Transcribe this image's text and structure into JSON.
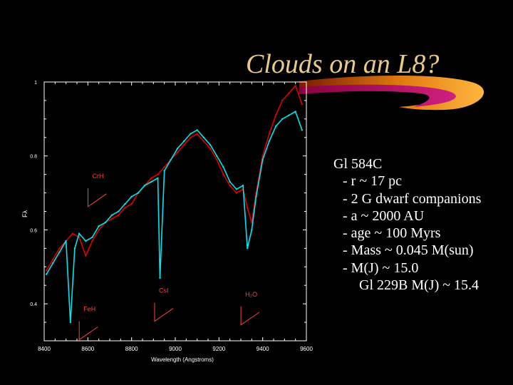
{
  "slide": {
    "title": "Clouds on an L8?",
    "bullets": [
      {
        "text": "Gl 584C",
        "level": 0
      },
      {
        "text": "- r ~ 17 pc",
        "level": 1
      },
      {
        "text": "- 2 G dwarf companions",
        "level": 1
      },
      {
        "text": "- a ~ 2000 AU",
        "level": 1
      },
      {
        "text": "- age ~ 100 Myrs",
        "level": 1
      },
      {
        "text": "- Mass ~ 0.045 M(sun)",
        "level": 1
      },
      {
        "text": "- M(J) ~ 15.0",
        "level": 1
      },
      {
        "text": "Gl 229B M(J) ~ 15.4",
        "level": 2
      }
    ]
  },
  "colors": {
    "title": "#e8c98a",
    "axis": "#ffffff",
    "series_red": "#e00000",
    "series_cyan": "#00e5ee",
    "annotation": "#ff4040"
  },
  "chart_data": {
    "type": "line",
    "xlabel": "Wavelength (Angstroms)",
    "ylabel": "Fλ",
    "xlim": [
      8400,
      9600
    ],
    "ylim": [
      0.3,
      1.0
    ],
    "x_ticks": [
      8400,
      8600,
      8800,
      9000,
      9200,
      9400,
      9600
    ],
    "x_tick_labels": [
      "8400",
      "8600",
      "8800",
      "9000",
      "9200",
      "9400",
      "9600"
    ],
    "y_ticks": [
      0.4,
      0.6,
      0.8,
      1.0
    ],
    "y_tick_labels": [
      "0.4",
      "0.6",
      "0.8",
      "1"
    ],
    "annotations": [
      {
        "text": "CrH",
        "x": 8620,
        "y": 0.74
      },
      {
        "text": "FeH",
        "x": 8580,
        "y": 0.38
      },
      {
        "text": "CsI",
        "x": 8925,
        "y": 0.43
      },
      {
        "text": "H₂O",
        "x": 9320,
        "y": 0.42
      }
    ],
    "series": [
      {
        "color": "red",
        "x": [
          8410,
          8440,
          8470,
          8500,
          8530,
          8560,
          8590,
          8620,
          8650,
          8680,
          8710,
          8740,
          8770,
          8800,
          8830,
          8860,
          8890,
          8920,
          8950,
          8980,
          9010,
          9040,
          9070,
          9100,
          9130,
          9160,
          9190,
          9220,
          9250,
          9280,
          9310,
          9330,
          9350,
          9370,
          9400,
          9430,
          9460,
          9490,
          9520,
          9550,
          9580
        ],
        "y": [
          0.49,
          0.52,
          0.55,
          0.57,
          0.59,
          0.58,
          0.53,
          0.57,
          0.6,
          0.62,
          0.63,
          0.64,
          0.66,
          0.67,
          0.7,
          0.72,
          0.74,
          0.75,
          0.77,
          0.79,
          0.81,
          0.83,
          0.85,
          0.86,
          0.84,
          0.82,
          0.79,
          0.75,
          0.72,
          0.7,
          0.71,
          0.66,
          0.62,
          0.7,
          0.8,
          0.86,
          0.91,
          0.95,
          0.97,
          0.99,
          0.94
        ]
      },
      {
        "color": "cyan",
        "x": [
          8410,
          8440,
          8470,
          8500,
          8520,
          8540,
          8560,
          8590,
          8620,
          8650,
          8680,
          8710,
          8740,
          8770,
          8800,
          8830,
          8860,
          8890,
          8920,
          8930,
          8950,
          8980,
          9010,
          9040,
          9070,
          9100,
          9130,
          9160,
          9190,
          9220,
          9250,
          9280,
          9310,
          9330,
          9350,
          9370,
          9400,
          9430,
          9460,
          9490,
          9520,
          9550,
          9580
        ],
        "y": [
          0.48,
          0.51,
          0.54,
          0.57,
          0.35,
          0.55,
          0.59,
          0.57,
          0.58,
          0.61,
          0.62,
          0.64,
          0.65,
          0.67,
          0.69,
          0.7,
          0.72,
          0.73,
          0.74,
          0.47,
          0.76,
          0.79,
          0.82,
          0.84,
          0.86,
          0.87,
          0.85,
          0.83,
          0.8,
          0.77,
          0.73,
          0.71,
          0.72,
          0.55,
          0.6,
          0.69,
          0.79,
          0.84,
          0.88,
          0.9,
          0.91,
          0.92,
          0.87
        ]
      }
    ]
  }
}
